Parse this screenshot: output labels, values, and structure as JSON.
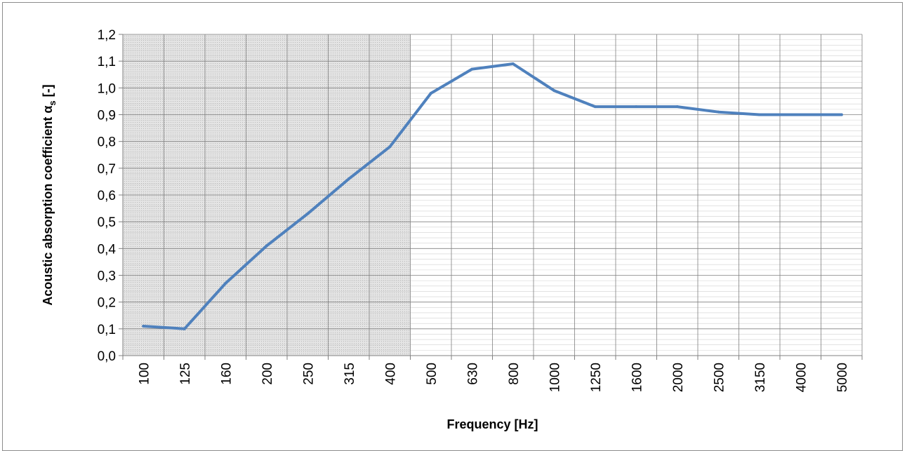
{
  "chart_data": {
    "type": "line",
    "title": "",
    "xlabel": "Frequency [Hz]",
    "ylabel": "Acoustic absorption coefficient α",
    "ylabel_subscript": "s",
    "ylabel_suffix": " [-]",
    "categories": [
      "100",
      "125",
      "160",
      "200",
      "250",
      "315",
      "400",
      "500",
      "630",
      "800",
      "1000",
      "1250",
      "1600",
      "2000",
      "2500",
      "3150",
      "4000",
      "5000"
    ],
    "series": [
      {
        "values": [
          0.11,
          0.1,
          0.27,
          0.41,
          0.53,
          0.66,
          0.78,
          0.98,
          1.07,
          1.09,
          0.99,
          0.93,
          0.93,
          0.93,
          0.91,
          0.9,
          0.9,
          0.9
        ]
      }
    ],
    "yticks": [
      "0,0",
      "0,1",
      "0,2",
      "0,3",
      "0,4",
      "0,5",
      "0,6",
      "0,7",
      "0,8",
      "0,9",
      "1,0",
      "1,1",
      "1,2"
    ],
    "ylim": [
      0,
      1.2
    ],
    "grid": true,
    "shaded_categories": [
      "100",
      "125",
      "160",
      "200",
      "250",
      "315",
      "400"
    ],
    "colors": {
      "line": "#4f81bd",
      "shade": "#d9d9d9",
      "grid_major": "#808080",
      "grid_minor": "#d0d0d0"
    }
  }
}
